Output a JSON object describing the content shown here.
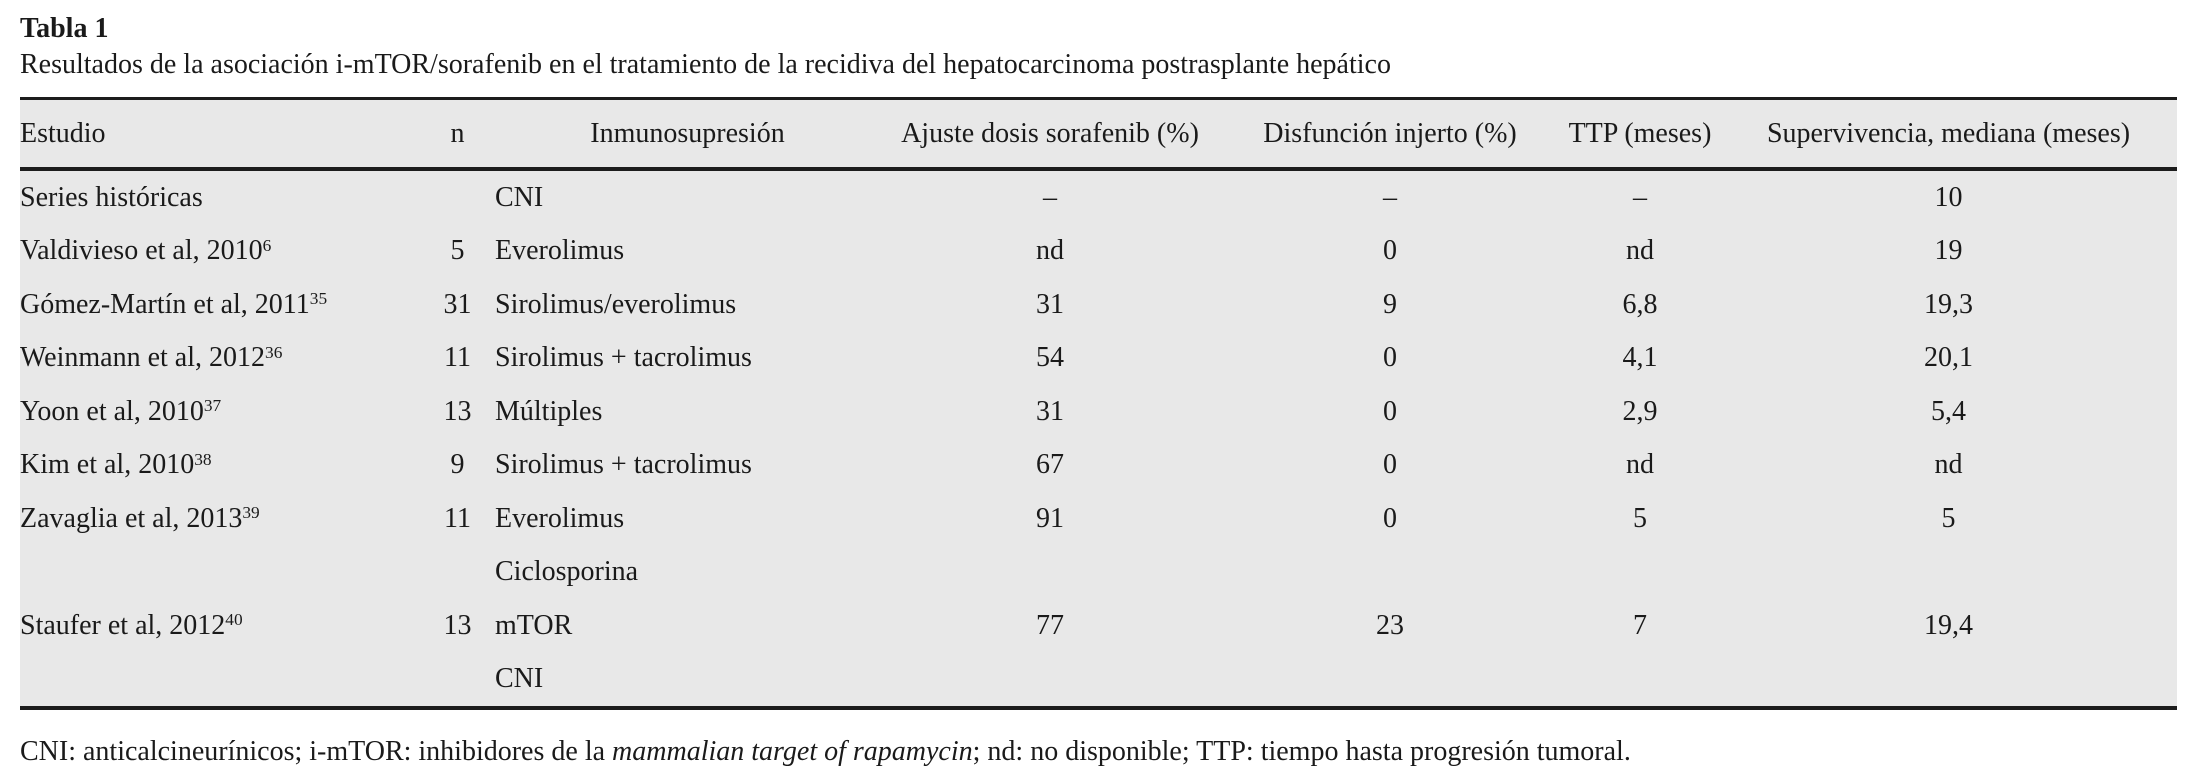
{
  "table": {
    "label": "Tabla 1",
    "caption": "Resultados de la asociación i-mTOR/sorafenib en el tratamiento de la recidiva del hepatocarcinoma postrasplante hepático",
    "columns": [
      {
        "key": "estudio",
        "label": "Estudio"
      },
      {
        "key": "n",
        "label": "n"
      },
      {
        "key": "inmunosupresion",
        "label": "Inmunosupresión"
      },
      {
        "key": "ajuste",
        "label": "Ajuste dosis sorafenib (%)"
      },
      {
        "key": "disfuncion",
        "label": "Disfunción injerto (%)"
      },
      {
        "key": "ttp",
        "label": "TTP (meses)"
      },
      {
        "key": "supervivencia",
        "label": "Supervivencia, mediana (meses)"
      }
    ],
    "rows": [
      {
        "estudio": "Series históricas",
        "ref": "",
        "n": "",
        "inmunosupresion": "CNI",
        "ajuste": "–",
        "disfuncion": "–",
        "ttp": "–",
        "supervivencia": "10"
      },
      {
        "estudio": "Valdivieso et al, 2010",
        "ref": "6",
        "n": "5",
        "inmunosupresion": "Everolimus",
        "ajuste": "nd",
        "disfuncion": "0",
        "ttp": "nd",
        "supervivencia": "19"
      },
      {
        "estudio": "Gómez-Martín et al, 2011",
        "ref": "35",
        "n": "31",
        "inmunosupresion": "Sirolimus/everolimus",
        "ajuste": "31",
        "disfuncion": "9",
        "ttp": "6,8",
        "supervivencia": "19,3"
      },
      {
        "estudio": "Weinmann et al, 2012",
        "ref": "36",
        "n": "11",
        "inmunosupresion": "Sirolimus + tacrolimus",
        "ajuste": "54",
        "disfuncion": "0",
        "ttp": "4,1",
        "supervivencia": "20,1"
      },
      {
        "estudio": "Yoon et al, 2010",
        "ref": "37",
        "n": "13",
        "inmunosupresion": "Múltiples",
        "ajuste": "31",
        "disfuncion": "0",
        "ttp": "2,9",
        "supervivencia": "5,4"
      },
      {
        "estudio": "Kim et al, 2010",
        "ref": "38",
        "n": "9",
        "inmunosupresion": "Sirolimus + tacrolimus",
        "ajuste": "67",
        "disfuncion": "0",
        "ttp": "nd",
        "supervivencia": "nd"
      },
      {
        "estudio": "Zavaglia et al, 2013",
        "ref": "39",
        "n": "11",
        "inmunosupresion": "Everolimus",
        "ajuste": "91",
        "disfuncion": "0",
        "ttp": "5",
        "supervivencia": "5"
      },
      {
        "estudio": "",
        "ref": "",
        "n": "",
        "inmunosupresion": "Ciclosporina",
        "ajuste": "",
        "disfuncion": "",
        "ttp": "",
        "supervivencia": ""
      },
      {
        "estudio": "Staufer et al, 2012",
        "ref": "40",
        "n": "13",
        "inmunosupresion": "mTOR",
        "ajuste": "77",
        "disfuncion": "23",
        "ttp": "7",
        "supervivencia": "19,4"
      },
      {
        "estudio": "",
        "ref": "",
        "n": "",
        "inmunosupresion": "CNI",
        "ajuste": "",
        "disfuncion": "",
        "ttp": "",
        "supervivencia": ""
      }
    ],
    "footnote": {
      "pre": "CNI: anticalcineurínicos; i-mTOR: inhibidores de la ",
      "italic": "mammalian target of rapamycin",
      "post": "; nd: no disponible; TTP: tiempo hasta progresión tumoral."
    }
  },
  "colors": {
    "table_background": "#e8e8e8",
    "rule": "#1c1c1c",
    "text": "#1a1a1a",
    "page_background": "#ffffff"
  }
}
